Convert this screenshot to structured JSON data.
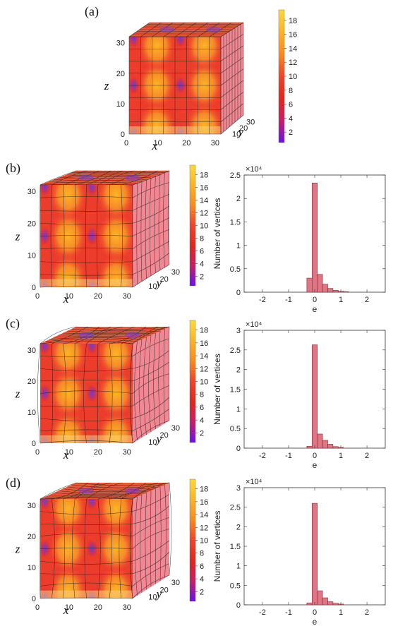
{
  "panels": [
    {
      "label": "(a)"
    },
    {
      "label": "(b)"
    },
    {
      "label": "(c)"
    },
    {
      "label": "(d)"
    }
  ],
  "cube_axes": {
    "x_label": "x",
    "y_label": "y",
    "z_label": "z",
    "ticks": [
      "0",
      "10",
      "20",
      "30"
    ]
  },
  "colorbar": {
    "ticks": [
      "2",
      "4",
      "6",
      "8",
      "10",
      "12",
      "14",
      "16",
      "18"
    ],
    "colors": [
      "#6a11ee",
      "#c81e66",
      "#e3261e",
      "#f0442a",
      "#fb8a1e",
      "#fdb424",
      "#fdd93a"
    ]
  },
  "chart_data": [
    {
      "type": "bar",
      "panel": "(b)",
      "xlabel": "e",
      "ylabel": "Number of vertices",
      "multiplier": "×10⁴",
      "xlim": [
        -2.7,
        2.7
      ],
      "ylim": [
        0,
        2.5
      ],
      "xticks": [
        "-2",
        "-1",
        "0",
        "1",
        "2"
      ],
      "yticks": [
        "0",
        "0.5",
        "1",
        "1.5",
        "2",
        "2.5"
      ],
      "bin_width": 0.2,
      "bin_left_edges": [
        -0.3,
        -0.1,
        0.1,
        0.3,
        0.5,
        0.7,
        0.9,
        1.1
      ],
      "values": [
        0.3,
        2.33,
        0.38,
        0.17,
        0.08,
        0.04,
        0.02,
        0.01
      ],
      "color": "#e07584"
    },
    {
      "type": "bar",
      "panel": "(c)",
      "xlabel": "e",
      "ylabel": "Number of vertices",
      "multiplier": "×10⁴",
      "xlim": [
        -2.7,
        2.7
      ],
      "ylim": [
        0,
        3
      ],
      "xticks": [
        "-2",
        "-1",
        "0",
        "1",
        "2"
      ],
      "yticks": [
        "0",
        "0.5",
        "1",
        "1.5",
        "2",
        "2.5",
        "3"
      ],
      "bin_width": 0.2,
      "bin_left_edges": [
        -0.3,
        -0.1,
        0.1,
        0.3,
        0.5,
        0.7,
        0.9
      ],
      "values": [
        0.05,
        2.63,
        0.36,
        0.2,
        0.1,
        0.04,
        0.02
      ],
      "color": "#e07584"
    },
    {
      "type": "bar",
      "panel": "(d)",
      "xlabel": "e",
      "ylabel": "Number of vertices",
      "multiplier": "×10⁴",
      "xlim": [
        -2.7,
        2.7
      ],
      "ylim": [
        0,
        3
      ],
      "xticks": [
        "-2",
        "-1",
        "0",
        "1",
        "2"
      ],
      "yticks": [
        "0",
        "0.5",
        "1",
        "1.5",
        "2",
        "2.5",
        "3"
      ],
      "bin_width": 0.2,
      "bin_left_edges": [
        -0.3,
        -0.1,
        0.1,
        0.3,
        0.5,
        0.7,
        0.9
      ],
      "values": [
        0.05,
        2.6,
        0.36,
        0.18,
        0.08,
        0.04,
        0.02
      ],
      "color": "#e07584"
    }
  ]
}
